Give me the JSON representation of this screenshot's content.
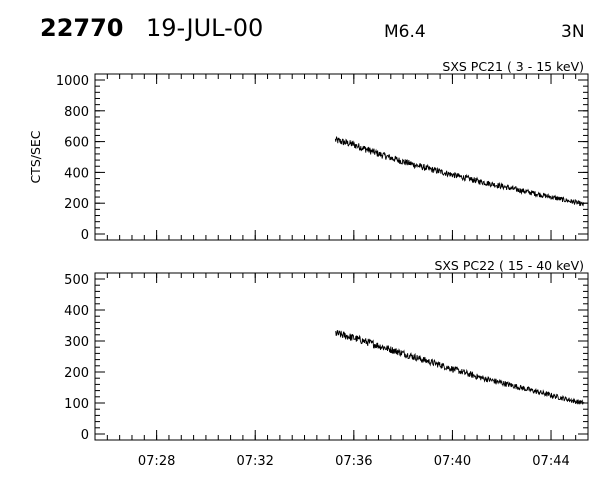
{
  "header": {
    "event_id": "22770",
    "date": "19-JUL-00",
    "flare_class": "M6.4",
    "location": "3N"
  },
  "chart_data": [
    {
      "type": "line",
      "title": "SXS PC21  (  3 - 15 keV)",
      "ylabel": "CTS/SEC",
      "xlabel": "",
      "xlim": [
        "07:25:30",
        "07:45:30"
      ],
      "ylim": [
        0,
        1000
      ],
      "yticks": [
        0,
        200,
        400,
        600,
        800,
        1000
      ],
      "xticks": [
        "07:28",
        "07:32",
        "07:36",
        "07:40",
        "07:44"
      ],
      "grid": false,
      "series": [
        {
          "x": [
            "07:35:15",
            "07:36:00",
            "07:37:00",
            "07:38:00",
            "07:39:00",
            "07:40:00",
            "07:41:00",
            "07:42:00",
            "07:43:00",
            "07:44:00",
            "07:45:00",
            "07:45:20"
          ],
          "y": [
            610,
            580,
            520,
            470,
            425,
            385,
            345,
            310,
            275,
            240,
            205,
            190
          ]
        }
      ]
    },
    {
      "type": "line",
      "title": "SXS PC22  ( 15 - 40 keV)",
      "ylabel": "",
      "xlabel": "",
      "xlim": [
        "07:25:30",
        "07:45:30"
      ],
      "ylim": [
        0,
        500
      ],
      "yticks": [
        0,
        100,
        200,
        300,
        400,
        500
      ],
      "xticks": [
        "07:28",
        "07:32",
        "07:36",
        "07:40",
        "07:44"
      ],
      "grid": false,
      "series": [
        {
          "x": [
            "07:35:15",
            "07:36:00",
            "07:37:00",
            "07:38:00",
            "07:39:00",
            "07:40:00",
            "07:41:00",
            "07:42:00",
            "07:43:00",
            "07:44:00",
            "07:45:00",
            "07:45:20"
          ],
          "y": [
            325,
            310,
            285,
            260,
            235,
            210,
            185,
            165,
            145,
            125,
            105,
            100
          ]
        }
      ]
    }
  ]
}
